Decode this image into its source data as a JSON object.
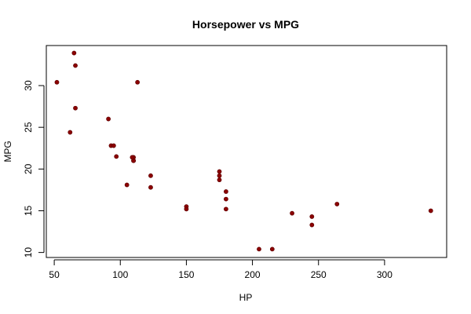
{
  "chart_data": {
    "type": "scatter",
    "title": "Horsepower vs MPG",
    "xlabel": "HP",
    "ylabel": "MPG",
    "xlim": [
      44,
      347
    ],
    "ylim": [
      9.4,
      34.8
    ],
    "xticks": [
      50,
      100,
      150,
      200,
      250,
      300
    ],
    "yticks": [
      10,
      15,
      20,
      25,
      30
    ],
    "grid": false,
    "legend": "none",
    "point_color": "#8B0000",
    "points": [
      {
        "x": 110,
        "y": 21.0
      },
      {
        "x": 110,
        "y": 21.0
      },
      {
        "x": 93,
        "y": 22.8
      },
      {
        "x": 110,
        "y": 21.4
      },
      {
        "x": 175,
        "y": 18.7
      },
      {
        "x": 105,
        "y": 18.1
      },
      {
        "x": 245,
        "y": 14.3
      },
      {
        "x": 62,
        "y": 24.4
      },
      {
        "x": 95,
        "y": 22.8
      },
      {
        "x": 123,
        "y": 19.2
      },
      {
        "x": 123,
        "y": 17.8
      },
      {
        "x": 180,
        "y": 16.4
      },
      {
        "x": 180,
        "y": 17.3
      },
      {
        "x": 180,
        "y": 15.2
      },
      {
        "x": 205,
        "y": 10.4
      },
      {
        "x": 215,
        "y": 10.4
      },
      {
        "x": 230,
        "y": 14.7
      },
      {
        "x": 66,
        "y": 32.4
      },
      {
        "x": 52,
        "y": 30.4
      },
      {
        "x": 65,
        "y": 33.9
      },
      {
        "x": 97,
        "y": 21.5
      },
      {
        "x": 150,
        "y": 15.5
      },
      {
        "x": 150,
        "y": 15.2
      },
      {
        "x": 245,
        "y": 13.3
      },
      {
        "x": 175,
        "y": 19.2
      },
      {
        "x": 66,
        "y": 27.3
      },
      {
        "x": 91,
        "y": 26.0
      },
      {
        "x": 113,
        "y": 30.4
      },
      {
        "x": 264,
        "y": 15.8
      },
      {
        "x": 175,
        "y": 19.7
      },
      {
        "x": 335,
        "y": 15.0
      },
      {
        "x": 109,
        "y": 21.4
      }
    ]
  }
}
